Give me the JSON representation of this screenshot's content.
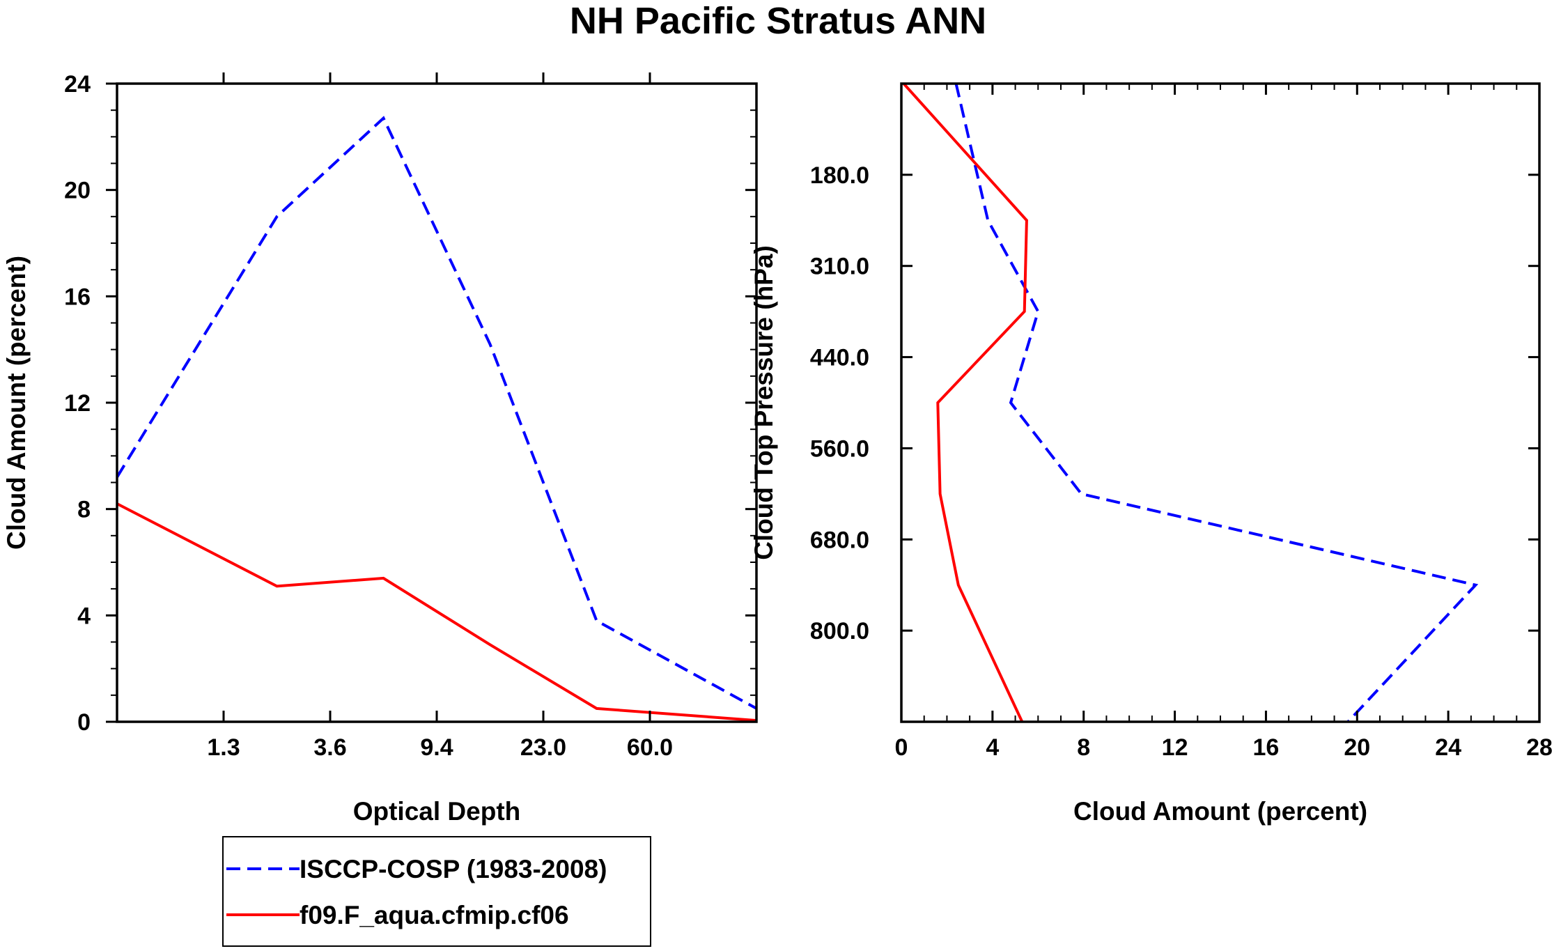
{
  "figure_title": "NH Pacific Stratus ANN",
  "chart_data": [
    {
      "type": "line",
      "title": "NH Pacific Stratus ANN",
      "xlabel": "Optical Depth",
      "ylabel": "Cloud Amount (percent)",
      "x_categories": [
        "",
        "1.3",
        "3.6",
        "9.4",
        "23.0",
        "60.0",
        ""
      ],
      "x_tick_labels": [
        "1.3",
        "3.6",
        "9.4",
        "23.0",
        "60.0"
      ],
      "ylim": [
        0,
        24
      ],
      "y_ticks": [
        "0",
        "4",
        "8",
        "12",
        "16",
        "20",
        "24"
      ],
      "grid": false,
      "series": [
        {
          "name": "ISCCP-COSP (1983-2008)",
          "color": "#0000ff",
          "dash": "dashed",
          "values": [
            9.2,
            19.0,
            22.7,
            14.2,
            3.8,
            0.5
          ]
        },
        {
          "name": "f09.F_aqua.cfmip.cf06",
          "color": "#ff0000",
          "dash": "solid",
          "values": [
            8.2,
            5.1,
            5.4,
            2.9,
            0.5,
            0.05
          ]
        }
      ]
    },
    {
      "type": "line",
      "xlabel": "Cloud Amount (percent)",
      "ylabel": "Cloud Top Pressure (hPa)",
      "xlim": [
        0,
        28
      ],
      "x_ticks": [
        "0",
        "4",
        "8",
        "12",
        "16",
        "20",
        "24",
        "28"
      ],
      "y_tick_labels": [
        "180.0",
        "310.0",
        "440.0",
        "560.0",
        "680.0",
        "800.0"
      ],
      "y_levels": 7,
      "grid": false,
      "series": [
        {
          "name": "ISCCP-COSP (1983-2008)",
          "color": "#0000ff",
          "dash": "dashed",
          "values": [
            2.4,
            3.8,
            6.0,
            4.8,
            7.9,
            25.2,
            19.6
          ]
        },
        {
          "name": "f09.F_aqua.cfmip.cf06",
          "color": "#ff0000",
          "dash": "solid",
          "values": [
            0.1,
            5.5,
            5.4,
            1.6,
            1.7,
            2.5,
            5.3
          ]
        }
      ]
    }
  ],
  "legend": {
    "placement": "bottom-left",
    "entries": [
      {
        "label": "ISCCP-COSP (1983-2008)",
        "color": "#0000ff",
        "dash": "dashed"
      },
      {
        "label": "f09.F_aqua.cfmip.cf06",
        "color": "#ff0000",
        "dash": "solid"
      }
    ]
  }
}
